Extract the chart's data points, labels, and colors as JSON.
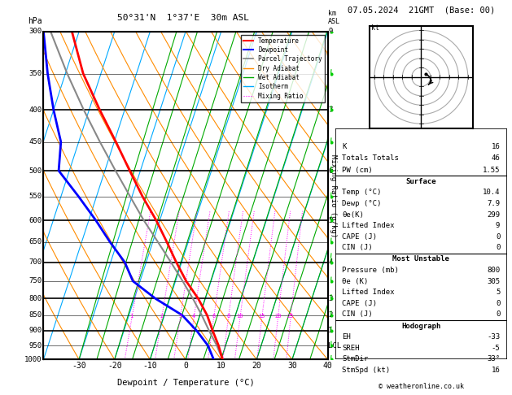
{
  "title_left": "50°31'N  1°37'E  30m ASL",
  "title_right": "07.05.2024  21GMT  (Base: 00)",
  "xlabel": "Dewpoint / Temperature (°C)",
  "pressure_levels": [
    300,
    350,
    400,
    450,
    500,
    550,
    600,
    650,
    700,
    750,
    800,
    850,
    900,
    950,
    1000
  ],
  "temp_ticks": [
    -30,
    -20,
    -10,
    0,
    10,
    20,
    30,
    40
  ],
  "t_min": -40,
  "t_max": 40,
  "km_map": {
    "300": "9",
    "400": "7",
    "500": "6",
    "600": "5",
    "700": "4",
    "800": "3",
    "850": "2",
    "900": "1",
    "950": "LCL"
  },
  "skew": 30.0,
  "temperature_profile": {
    "pressure": [
      1000,
      950,
      900,
      850,
      800,
      750,
      700,
      650,
      600,
      550,
      500,
      450,
      400,
      350,
      300
    ],
    "temp": [
      10.4,
      8.0,
      5.0,
      2.0,
      -2.0,
      -7.0,
      -11.5,
      -16.0,
      -21.0,
      -27.0,
      -33.0,
      -39.5,
      -47.0,
      -55.0,
      -62.0
    ]
  },
  "dewpoint_profile": {
    "pressure": [
      1000,
      950,
      900,
      850,
      800,
      750,
      700,
      650,
      600,
      550,
      500,
      450,
      400,
      350,
      300
    ],
    "temp": [
      7.9,
      5.0,
      0.5,
      -5.0,
      -14.0,
      -22.0,
      -26.0,
      -32.0,
      -38.0,
      -45.0,
      -53.0,
      -55.0,
      -60.0,
      -65.0,
      -70.0
    ]
  },
  "parcel_profile": {
    "pressure": [
      1000,
      950,
      900,
      850,
      800,
      750,
      700,
      650,
      600,
      550,
      500,
      450,
      400,
      350,
      300
    ],
    "temp": [
      10.4,
      7.5,
      4.0,
      0.5,
      -3.5,
      -8.0,
      -13.0,
      -18.5,
      -24.5,
      -30.5,
      -37.0,
      -44.0,
      -51.5,
      -59.5,
      -68.0
    ]
  },
  "mixing_ratio_labels": [
    "1",
    "2",
    "3",
    "4",
    "6",
    "8",
    "10",
    "15",
    "20",
    "25"
  ],
  "mixing_ratio_values": [
    1,
    2,
    3,
    4,
    6,
    8,
    10,
    15,
    20,
    25
  ],
  "info_box": {
    "top_rows": [
      [
        "K",
        "16"
      ],
      [
        "Totals Totals",
        "46"
      ],
      [
        "PW (cm)",
        "1.55"
      ]
    ],
    "surface_rows": [
      [
        "Temp (°C)",
        "10.4"
      ],
      [
        "Dewp (°C)",
        "7.9"
      ],
      [
        "θe(K)",
        "299"
      ],
      [
        "Lifted Index",
        "9"
      ],
      [
        "CAPE (J)",
        "0"
      ],
      [
        "CIN (J)",
        "0"
      ]
    ],
    "mu_rows": [
      [
        "Pressure (mb)",
        "800"
      ],
      [
        "θe (K)",
        "305"
      ],
      [
        "Lifted Index",
        "5"
      ],
      [
        "CAPE (J)",
        "0"
      ],
      [
        "CIN (J)",
        "0"
      ]
    ],
    "hodo_rows": [
      [
        "EH",
        "-33"
      ],
      [
        "SREH",
        "-5"
      ],
      [
        "StmDir",
        "33°"
      ],
      [
        "StmSpd (kt)",
        "16"
      ]
    ]
  },
  "colors": {
    "temperature": "#ff0000",
    "dewpoint": "#0000ff",
    "parcel": "#888888",
    "dry_adiabat": "#ff8c00",
    "wet_adiabat": "#00aa00",
    "isotherm": "#00aaff",
    "mixing_ratio": "#ff00ff"
  },
  "wind_barbs": {
    "pressure": [
      1000,
      950,
      900,
      850,
      800,
      750,
      700,
      650,
      600,
      550,
      500,
      450,
      400,
      350,
      300
    ],
    "u_kt": [
      3,
      4,
      5,
      7,
      8,
      9,
      10,
      9,
      8,
      7,
      6,
      5,
      5,
      4,
      4
    ],
    "v_kt": [
      2,
      3,
      4,
      5,
      6,
      7,
      8,
      7,
      6,
      5,
      4,
      3,
      3,
      2,
      2
    ],
    "colors": [
      "#00cc00",
      "#00cc00",
      "#00cc00",
      "#00cc00",
      "#00cc00",
      "#00cc00",
      "#00cc00",
      "#00cc00",
      "#00cc00",
      "#00cc00",
      "#00cc00",
      "#00cc00",
      "#00cc00",
      "#00cc00",
      "#00cc00"
    ]
  }
}
